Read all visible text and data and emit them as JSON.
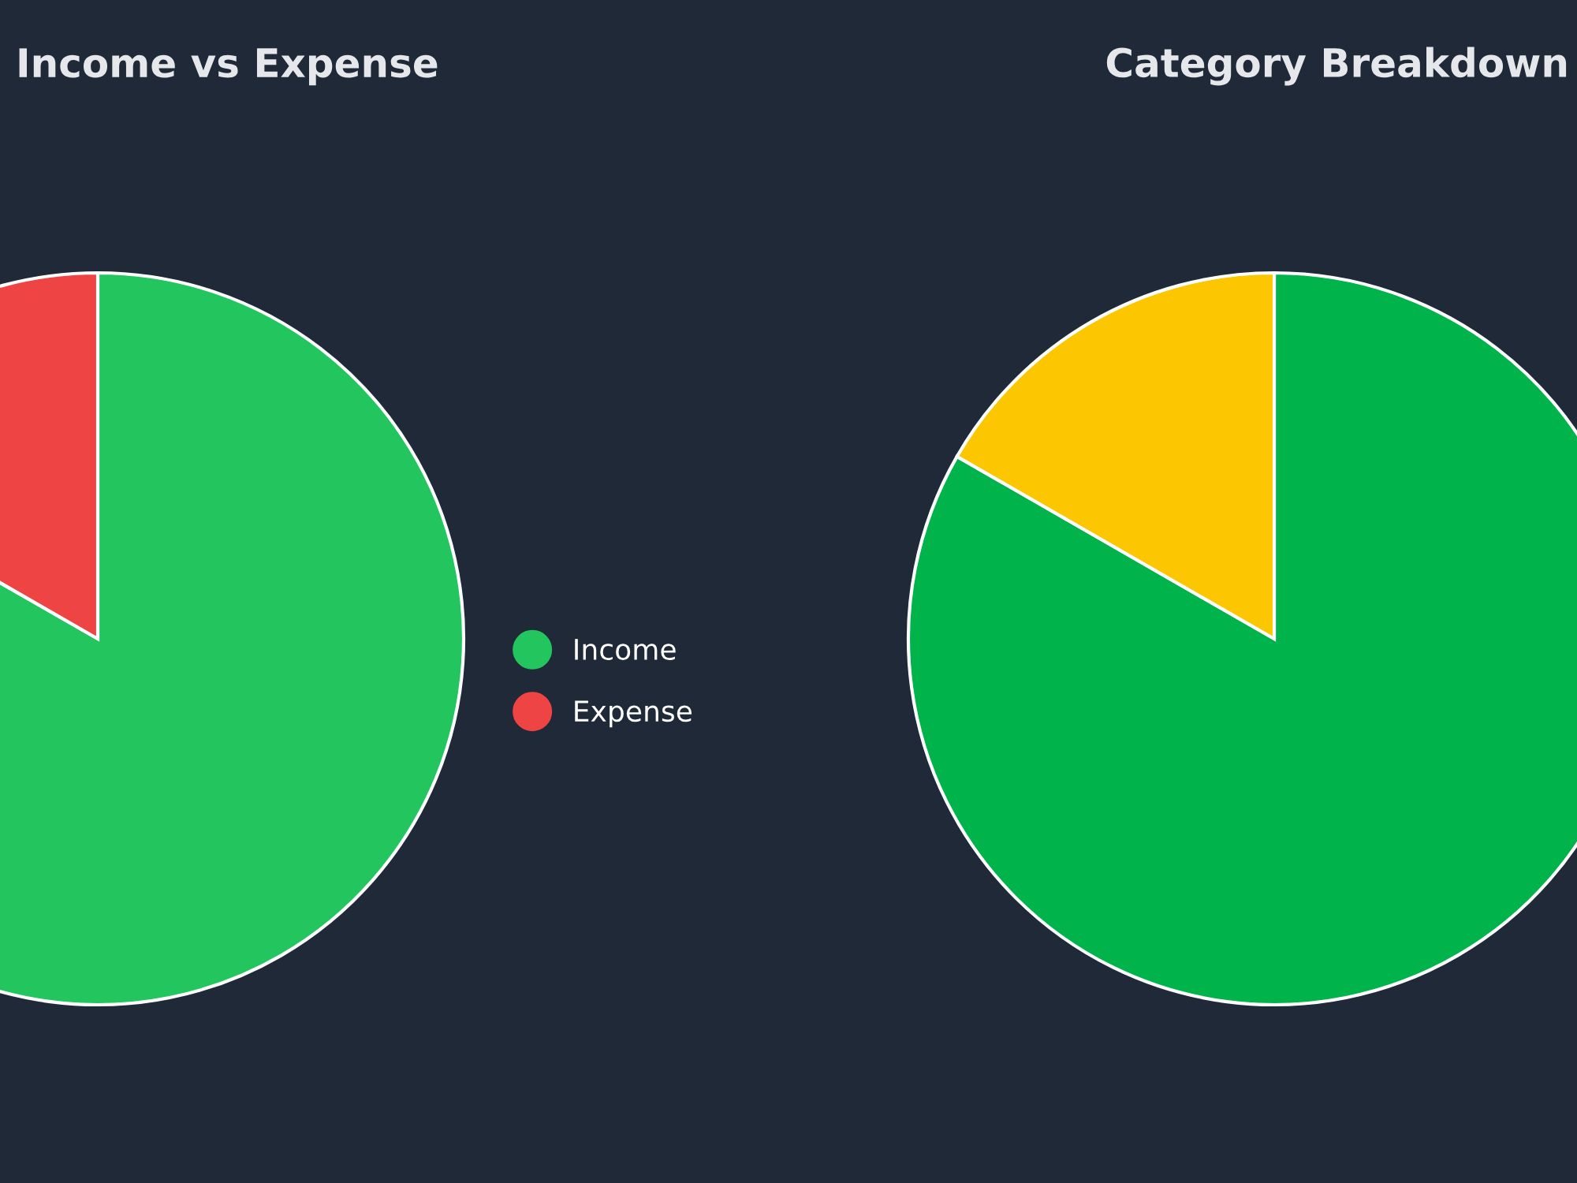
{
  "chart_data": [
    {
      "type": "pie",
      "title": "Income vs Expense",
      "categories": [
        "Income",
        "Expense"
      ],
      "values": [
        83.3,
        16.7
      ],
      "colors": [
        "#22c55e",
        "#ef4444"
      ],
      "legend": "right"
    },
    {
      "type": "pie",
      "title": "Category Breakdown",
      "categories": [
        null,
        null
      ],
      "values": [
        83.3,
        16.7
      ],
      "colors": [
        "#00b34a",
        "#fcc600"
      ]
    }
  ]
}
